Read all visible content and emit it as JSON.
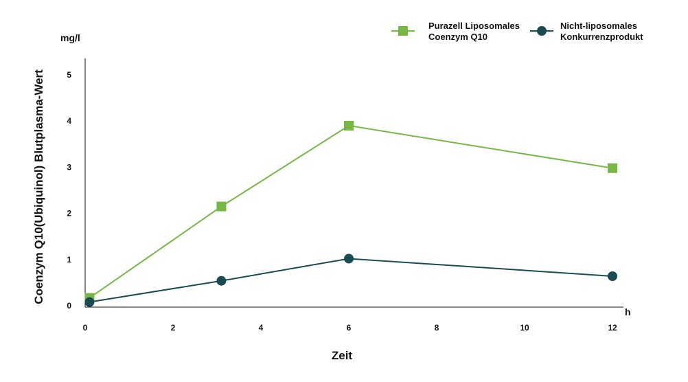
{
  "chart_data": {
    "type": "line",
    "xlabel": "Zeit",
    "ylabel": "Coenzym Q10(Ubiquinol) Blutplasma-Wert",
    "x_unit": "h",
    "y_unit": "mg/l",
    "xlim": [
      0,
      12
    ],
    "ylim": [
      0,
      5
    ],
    "x_ticks": [
      0,
      2,
      4,
      6,
      8,
      10,
      12
    ],
    "y_ticks": [
      0,
      1,
      2,
      3,
      4,
      5
    ],
    "grid": false,
    "legend_position": "top-right",
    "series": [
      {
        "name": "Purazell Liposomales Coenzym Q10",
        "legend_lines": [
          "Purazell Liposomales",
          "Coenzym Q10"
        ],
        "color": "#76b843",
        "marker": "square",
        "x": [
          0.1,
          3.1,
          6,
          12
        ],
        "y": [
          0.17,
          2.15,
          3.9,
          2.98
        ]
      },
      {
        "name": "Nicht-liposomales Konkurrenzprodukt",
        "legend_lines": [
          "Nicht-liposomales",
          "Konkurrenzprodukt"
        ],
        "color": "#1b4b52",
        "marker": "circle",
        "x": [
          0.1,
          3.1,
          6,
          12
        ],
        "y": [
          0.08,
          0.54,
          1.02,
          0.64
        ]
      }
    ]
  }
}
